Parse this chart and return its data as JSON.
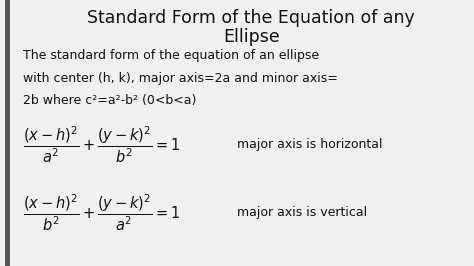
{
  "title_line1": "Standard Form of the Equation of any",
  "title_line2": "Ellipse",
  "body_line1": "The standard form of the equation of an ellipse",
  "body_line2": "with center (h, k), major axis=2a and minor axis=",
  "body_line3": "2b where c²=a²-b² (0<b<a)",
  "eq1_latex": "$\\dfrac{(x-h)^2}{a^2} + \\dfrac{(y-k)^2}{b^2} = 1$",
  "eq1_label": "major axis is horizontal",
  "eq2_latex": "$\\dfrac{(x-h)^2}{b^2} + \\dfrac{(y-k)^2}{a^2} = 1$",
  "eq2_label": "major axis is vertical",
  "bg_color": "#f0f0f0",
  "text_color": "#111111",
  "title_fontsize": 12.5,
  "body_fontsize": 9.0,
  "eq_fontsize": 10.5,
  "label_fontsize": 9.0,
  "bar_color": "#555555",
  "bar_width": 0.012
}
